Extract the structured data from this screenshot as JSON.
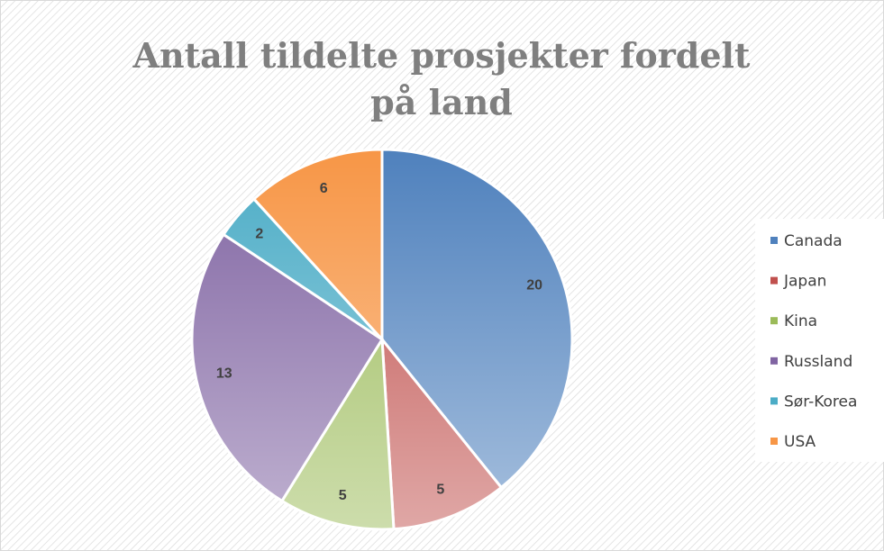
{
  "chart_data": {
    "type": "pie",
    "title": "Antall tildelte prosjekter fordelt på land",
    "categories": [
      "Canada",
      "Japan",
      "Kina",
      "Russland",
      "Sør-Korea",
      "USA"
    ],
    "values": [
      20,
      5,
      5,
      13,
      2,
      6
    ],
    "colors": [
      "#4f81bd",
      "#c0504d",
      "#9bbb59",
      "#8064a2",
      "#4bacc6",
      "#f79646"
    ],
    "legend": "right"
  }
}
